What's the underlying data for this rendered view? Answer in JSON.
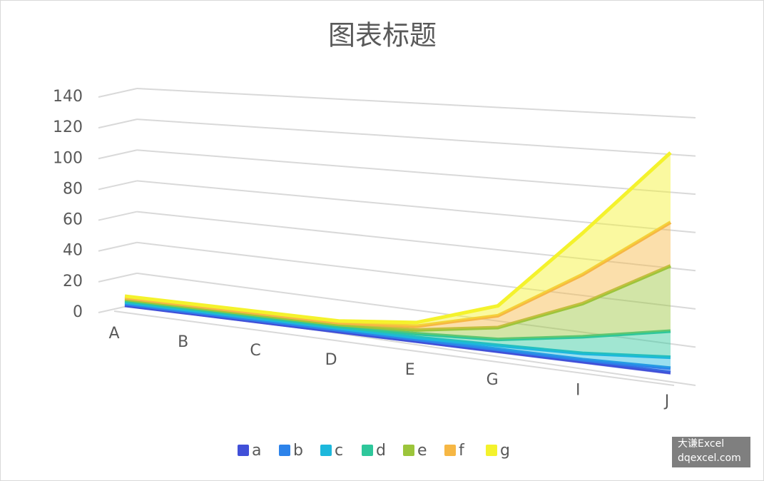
{
  "chart_data": {
    "type": "area3d",
    "title": "图表标题",
    "categories": [
      "A",
      "B",
      "C",
      "D",
      "E",
      "G",
      "I",
      "J"
    ],
    "series": [
      {
        "name": "a",
        "color": "#4150d8",
        "values": [
          1,
          1,
          1,
          1,
          1,
          1,
          1,
          1
        ]
      },
      {
        "name": "b",
        "color": "#2d83ea",
        "values": [
          1,
          1,
          1,
          1,
          1,
          1,
          1,
          2
        ]
      },
      {
        "name": "c",
        "color": "#1db8dc",
        "values": [
          1,
          1,
          1,
          1,
          1,
          2,
          3,
          5
        ]
      },
      {
        "name": "d",
        "color": "#2ec79b",
        "values": [
          1,
          1,
          1,
          1,
          2,
          3,
          8,
          12
        ]
      },
      {
        "name": "e",
        "color": "#9cc53b",
        "values": [
          1,
          1,
          1,
          1,
          2,
          6,
          16,
          30
        ]
      },
      {
        "name": "f",
        "color": "#f6b744",
        "values": [
          1,
          1,
          1,
          1,
          2,
          6,
          14,
          20
        ]
      },
      {
        "name": "g",
        "color": "#f4f22c",
        "values": [
          1,
          1,
          1,
          1,
          2,
          5,
          20,
          32
        ]
      }
    ],
    "stacked": true,
    "ylim": [
      0,
      140
    ],
    "yticks": [
      0,
      20,
      40,
      60,
      80,
      100,
      120,
      140
    ],
    "grid": true,
    "legend": "bottom",
    "watermark": [
      "大谦Excel",
      "dqexcel.com"
    ]
  }
}
